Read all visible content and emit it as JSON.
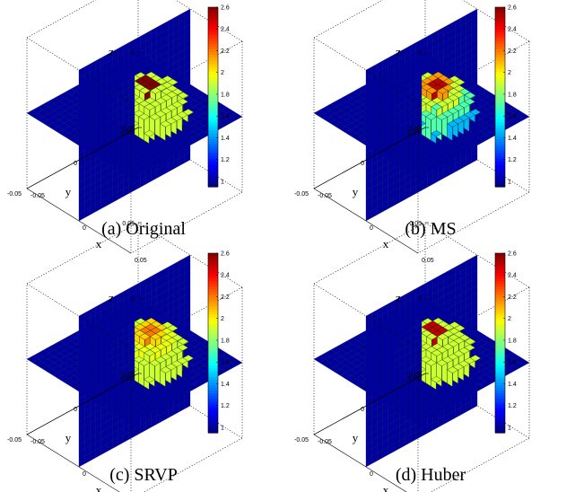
{
  "figure": {
    "panels": [
      {
        "caption": "(a) Original",
        "variant": "original"
      },
      {
        "caption": "(b) MS",
        "variant": "ms"
      },
      {
        "caption": "(c) SRVP",
        "variant": "srvp"
      },
      {
        "caption": "(d) Huber",
        "variant": "huber"
      }
    ],
    "axes": {
      "xlabel": "x",
      "ylabel": "y",
      "zlabel": "z",
      "z_ticks": [
        "0.05",
        "0",
        "-0.05"
      ],
      "y_ticks": [
        "0.05",
        "0",
        "-0.05"
      ],
      "x_ticks": [
        "-0.05",
        "0",
        "0.05"
      ]
    },
    "colorbar": {
      "ticks": [
        "2.6",
        "2.4",
        "2.2",
        "2",
        "1.8",
        "1.6",
        "1.4",
        "1.2",
        "1"
      ],
      "colormap": "jet",
      "min": 0.95,
      "max": 2.6
    },
    "colors": {
      "background_plane": "#1a2bb8",
      "inclusion_low": "#7ef07a",
      "inclusion_high": "#b00000"
    }
  },
  "chart_data": [
    {
      "type": "heatmap",
      "title": "(a) Original",
      "zlabel": "z",
      "xlabel": "x",
      "ylabel": "y",
      "color_range": [
        0.95,
        2.6
      ],
      "background_value": 1.0,
      "inclusion_value": 1.9,
      "core_value": 2.6
    },
    {
      "type": "heatmap",
      "title": "(b) MS",
      "zlabel": "z",
      "xlabel": "x",
      "ylabel": "y",
      "color_range": [
        0.95,
        2.6
      ],
      "background_value": 1.0,
      "inclusion_value": 1.9,
      "core_value": 2.5
    },
    {
      "type": "heatmap",
      "title": "(c) SRVP",
      "zlabel": "z",
      "xlabel": "x",
      "ylabel": "y",
      "color_range": [
        0.95,
        2.6
      ],
      "background_value": 1.0,
      "inclusion_value": 1.9,
      "core_value": 2.2
    },
    {
      "type": "heatmap",
      "title": "(d) Huber",
      "zlabel": "z",
      "xlabel": "x",
      "ylabel": "y",
      "color_range": [
        0.95,
        2.6
      ],
      "background_value": 1.0,
      "inclusion_value": 1.9,
      "core_value": 2.5
    }
  ]
}
